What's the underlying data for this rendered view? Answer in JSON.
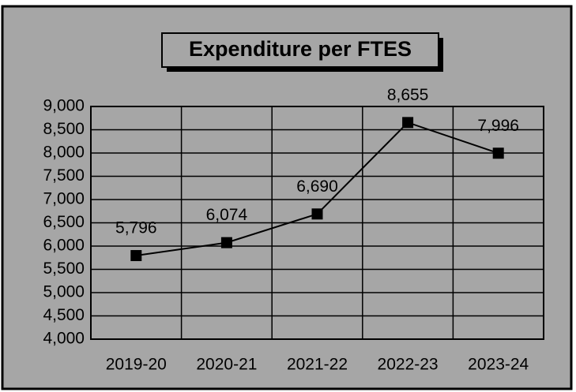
{
  "chart_data": {
    "type": "line",
    "title": "Expenditure per FTES",
    "categories": [
      "2019-20",
      "2020-21",
      "2021-22",
      "2022-23",
      "2023-24"
    ],
    "series": [
      {
        "name": "Expenditure per FTES",
        "color": "#000000",
        "values": [
          5796,
          6074,
          6690,
          8655,
          7996
        ],
        "value_labels": [
          "5,796",
          "6,074",
          "6,690",
          "8,655",
          "7,996"
        ]
      }
    ],
    "ylim": [
      4000,
      9000
    ],
    "yticks": [
      {
        "value": 4000,
        "label": "4,000"
      },
      {
        "value": 4500,
        "label": "4,500"
      },
      {
        "value": 5000,
        "label": "5,000"
      },
      {
        "value": 5500,
        "label": "5,500"
      },
      {
        "value": 6000,
        "label": "6,000"
      },
      {
        "value": 6500,
        "label": "6,500"
      },
      {
        "value": 7000,
        "label": "7,000"
      },
      {
        "value": 7500,
        "label": "7,500"
      },
      {
        "value": 8000,
        "label": "8,000"
      },
      {
        "value": 8500,
        "label": "8,500"
      },
      {
        "value": 9000,
        "label": "9,000"
      }
    ],
    "grid": true
  }
}
